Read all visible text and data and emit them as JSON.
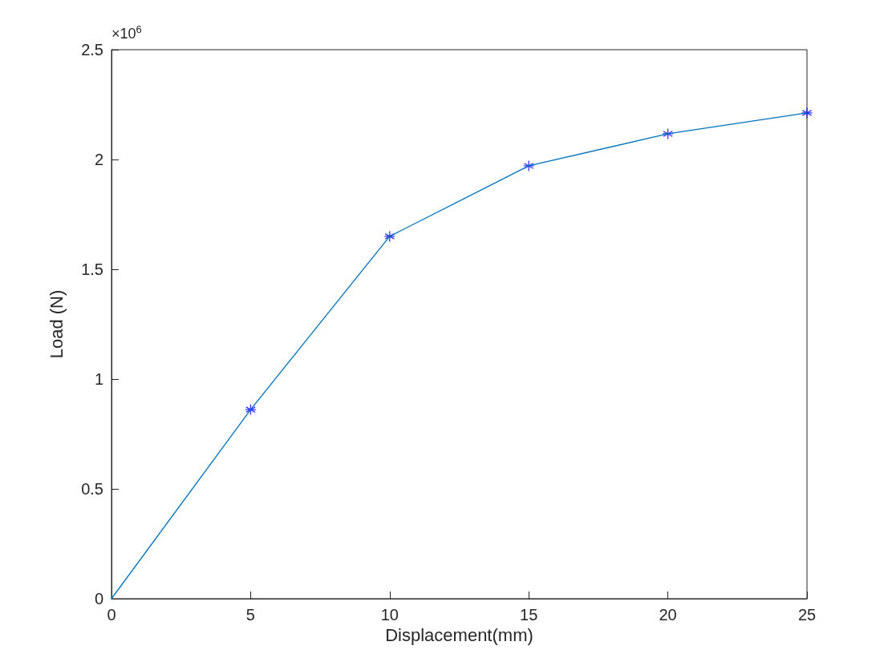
{
  "chart_data": {
    "type": "line",
    "xlabel": "Displacement(mm)",
    "ylabel": "Load (N)",
    "annotations": [
      "×10$^{6}$"
    ],
    "xlim": [
      0,
      25
    ],
    "xticks": [
      0,
      5,
      10,
      15,
      20,
      25
    ],
    "ylim": [
      0,
      2.5
    ],
    "yticks": [
      0,
      0.5,
      1,
      1.5,
      2,
      2.5
    ],
    "grid": false,
    "series": [
      {
        "color": "#0072bd",
        "x": [
          0,
          5,
          10,
          15,
          20,
          25
        ],
        "values": [
          0,
          0.861,
          1.65,
          1.971,
          2.117,
          2.212
        ],
        "marker": "none",
        "line_style": "solid"
      },
      {
        "type": "scatter",
        "color": "#0000ff",
        "x": [
          5,
          10,
          15,
          20,
          25
        ],
        "values": [
          0.861,
          1.65,
          1.971,
          2.117,
          2.212
        ],
        "marker": "cross"
      }
    ]
  }
}
